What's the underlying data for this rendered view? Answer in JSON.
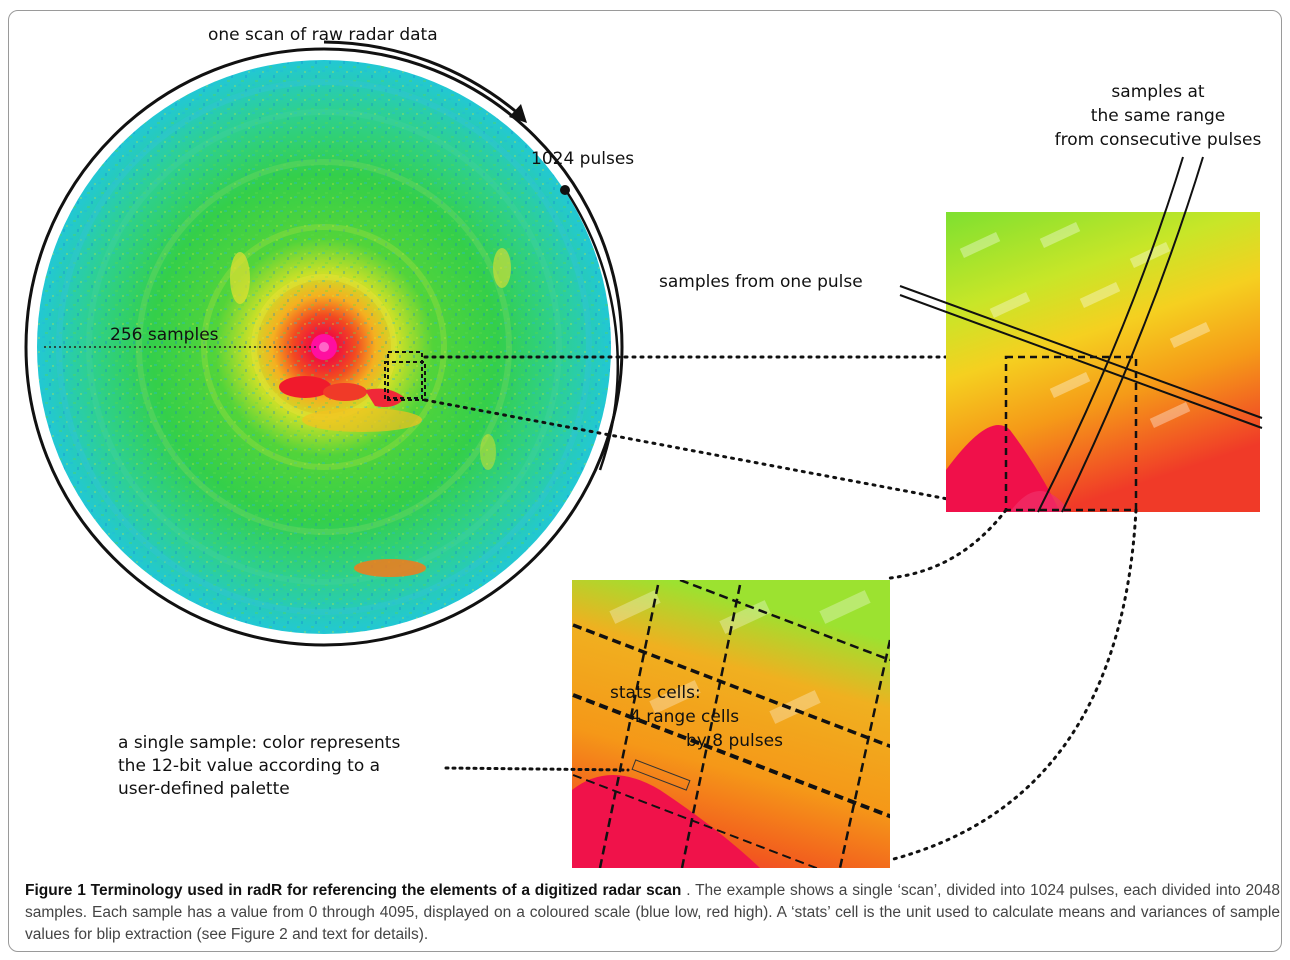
{
  "labels": {
    "scan": "one scan of raw radar data",
    "pulses": "1024 pulses",
    "samples256": "256 samples",
    "same_range": [
      "samples at",
      "the same range",
      "from consecutive pulses"
    ],
    "one_pulse": "samples from one pulse",
    "stats_cells": [
      "stats cells:",
      "4 range cells",
      "by 8 pulses"
    ],
    "single_sample": [
      "a single sample:  color represents",
      "the 12-bit value according to a",
      "user-defined palette"
    ]
  },
  "caption": {
    "title": "Figure 1 Terminology used in radR for referencing the elements of a digitized radar scan",
    "body": " . The example shows a single ‘scan’, divided into 1024 pulses, each divided into 2048 samples. Each sample has a value from 0 through 4095, displayed on a coloured scale (blue low, red high). A ‘stats’ cell is the unit used to calculate means and variances of sample values for blip extraction (see Figure 2 and text for details)."
  },
  "palette": {
    "low": "#1f3fd8",
    "mid_low": "#18d4c0",
    "mid": "#33d233",
    "mid_high": "#f0e820",
    "high": "#f59a10",
    "peak": "#f0143c"
  }
}
